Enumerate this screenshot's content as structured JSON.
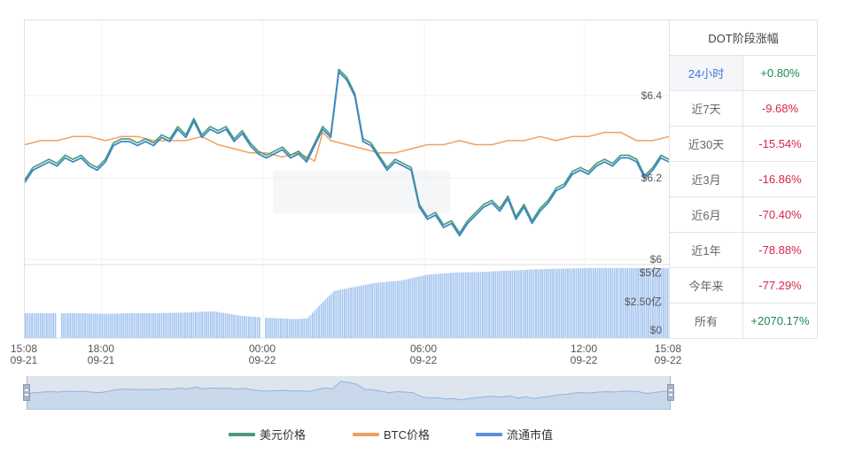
{
  "table": {
    "title": "DOT阶段涨幅",
    "rows": [
      {
        "period": "24小时",
        "change": "+0.80%",
        "direction": "up",
        "active": true
      },
      {
        "period": "近7天",
        "change": "-9.68%",
        "direction": "down",
        "active": false
      },
      {
        "period": "近30天",
        "change": "-15.54%",
        "direction": "down",
        "active": false
      },
      {
        "period": "近3月",
        "change": "-16.86%",
        "direction": "down",
        "active": false
      },
      {
        "period": "近6月",
        "change": "-70.40%",
        "direction": "down",
        "active": false
      },
      {
        "period": "近1年",
        "change": "-78.88%",
        "direction": "down",
        "active": false
      },
      {
        "period": "今年来",
        "change": "-77.29%",
        "direction": "down",
        "active": false
      },
      {
        "period": "所有",
        "change": "+2070.17%",
        "direction": "up",
        "active": false
      }
    ]
  },
  "colors": {
    "usd_price": "#4a9a78",
    "btc_price": "#f0a060",
    "market_cap": "#5b8fde",
    "price_line_blue": "#3b86c8",
    "bar_fill": "#a9c8f0",
    "positive": "#1c8a4e",
    "negative": "#d5264a",
    "active_period": "#3a7bd5"
  },
  "legend": [
    {
      "label": "美元价格",
      "color": "#4a9a78"
    },
    {
      "label": "BTC价格",
      "color": "#f0a060"
    },
    {
      "label": "流通市值",
      "color": "#5b8fde"
    }
  ],
  "chart_data": {
    "type": "line",
    "title": "DOT 24小时走势",
    "x_ticks": [
      {
        "time": "15:08",
        "date": "09-21"
      },
      {
        "time": "18:00",
        "date": "09-21"
      },
      {
        "time": "00:00",
        "date": "09-22"
      },
      {
        "time": "06:00",
        "date": "09-22"
      },
      {
        "time": "12:00",
        "date": "09-22"
      },
      {
        "time": "15:08",
        "date": "09-22"
      }
    ],
    "y_price_ticks": [
      "$6.4",
      "$6.2",
      "$6"
    ],
    "y_price_range": [
      6.0,
      6.4
    ],
    "y_cap_ticks": [
      "$5亿",
      "$2.50亿",
      "$0"
    ],
    "y_cap_range": [
      0,
      5
    ],
    "x_range_hours": [
      0,
      24
    ],
    "grid": true,
    "legend_position": "bottom",
    "series": [
      {
        "name": "美元价格",
        "unit": "USD",
        "x_hours": [
          0,
          0.3,
          0.6,
          0.9,
          1.2,
          1.5,
          1.8,
          2.1,
          2.4,
          2.7,
          3.0,
          3.3,
          3.6,
          3.9,
          4.2,
          4.5,
          4.8,
          5.1,
          5.4,
          5.7,
          6.0,
          6.3,
          6.6,
          6.9,
          7.2,
          7.5,
          7.8,
          8.1,
          8.4,
          8.7,
          9.0,
          9.3,
          9.6,
          9.9,
          10.2,
          10.5,
          10.8,
          11.1,
          11.4,
          11.7,
          12.0,
          12.3,
          12.6,
          12.9,
          13.2,
          13.5,
          13.8,
          14.1,
          14.4,
          14.7,
          15.0,
          15.3,
          15.6,
          15.9,
          16.2,
          16.5,
          16.8,
          17.1,
          17.4,
          17.7,
          18.0,
          18.3,
          18.6,
          18.9,
          19.2,
          19.5,
          19.8,
          20.1,
          20.4,
          20.7,
          21.0,
          21.3,
          21.6,
          21.9,
          22.2,
          22.5,
          22.8,
          23.1,
          23.4,
          23.7,
          24.0
        ],
        "values": [
          6.19,
          6.22,
          6.23,
          6.24,
          6.23,
          6.25,
          6.24,
          6.25,
          6.23,
          6.22,
          6.24,
          6.28,
          6.29,
          6.29,
          6.28,
          6.29,
          6.28,
          6.3,
          6.29,
          6.32,
          6.3,
          6.34,
          6.3,
          6.32,
          6.31,
          6.32,
          6.29,
          6.31,
          6.28,
          6.26,
          6.25,
          6.26,
          6.27,
          6.25,
          6.26,
          6.24,
          6.28,
          6.32,
          6.3,
          6.46,
          6.44,
          6.4,
          6.29,
          6.28,
          6.25,
          6.22,
          6.24,
          6.23,
          6.22,
          6.13,
          6.1,
          6.11,
          6.08,
          6.09,
          6.06,
          6.09,
          6.11,
          6.13,
          6.14,
          6.12,
          6.15,
          6.1,
          6.13,
          6.09,
          6.12,
          6.14,
          6.17,
          6.18,
          6.21,
          6.22,
          6.21,
          6.23,
          6.24,
          6.23,
          6.25,
          6.25,
          6.24,
          6.2,
          6.22,
          6.25,
          6.24
        ]
      },
      {
        "name": "BTC价格",
        "unit": "relative",
        "x_hours": [
          0,
          0.6,
          1.2,
          1.8,
          2.4,
          3.0,
          3.6,
          4.2,
          4.8,
          5.4,
          6.0,
          6.6,
          7.2,
          7.8,
          8.4,
          9.0,
          9.6,
          10.2,
          10.8,
          11.1,
          11.4,
          12.0,
          12.6,
          13.2,
          13.8,
          14.4,
          15.0,
          15.6,
          16.2,
          16.8,
          17.4,
          18.0,
          18.6,
          19.2,
          19.8,
          20.4,
          21.0,
          21.6,
          22.2,
          22.8,
          23.4,
          24.0
        ],
        "values": [
          6.28,
          6.29,
          6.29,
          6.3,
          6.3,
          6.29,
          6.3,
          6.3,
          6.29,
          6.29,
          6.29,
          6.3,
          6.28,
          6.27,
          6.26,
          6.26,
          6.25,
          6.26,
          6.24,
          6.31,
          6.29,
          6.28,
          6.27,
          6.26,
          6.26,
          6.27,
          6.28,
          6.28,
          6.29,
          6.28,
          6.28,
          6.29,
          6.29,
          6.3,
          6.29,
          6.3,
          6.3,
          6.31,
          6.31,
          6.29,
          6.29,
          6.3
        ]
      },
      {
        "name": "流通市值",
        "unit": "亿USD",
        "x_hours": [
          0,
          1,
          2,
          3,
          4,
          5,
          6,
          7,
          8,
          9,
          10,
          10.5,
          11,
          11.5,
          12,
          13,
          14,
          15,
          16,
          17,
          18,
          19,
          20,
          21,
          22,
          23,
          24
        ],
        "values": [
          1.9,
          1.9,
          1.9,
          1.85,
          1.9,
          1.9,
          1.95,
          2.05,
          1.7,
          1.55,
          1.45,
          1.5,
          2.6,
          3.6,
          3.8,
          4.2,
          4.4,
          4.85,
          5.0,
          5.05,
          5.15,
          5.25,
          5.3,
          5.35,
          5.35,
          5.35,
          5.35
        ]
      }
    ]
  }
}
